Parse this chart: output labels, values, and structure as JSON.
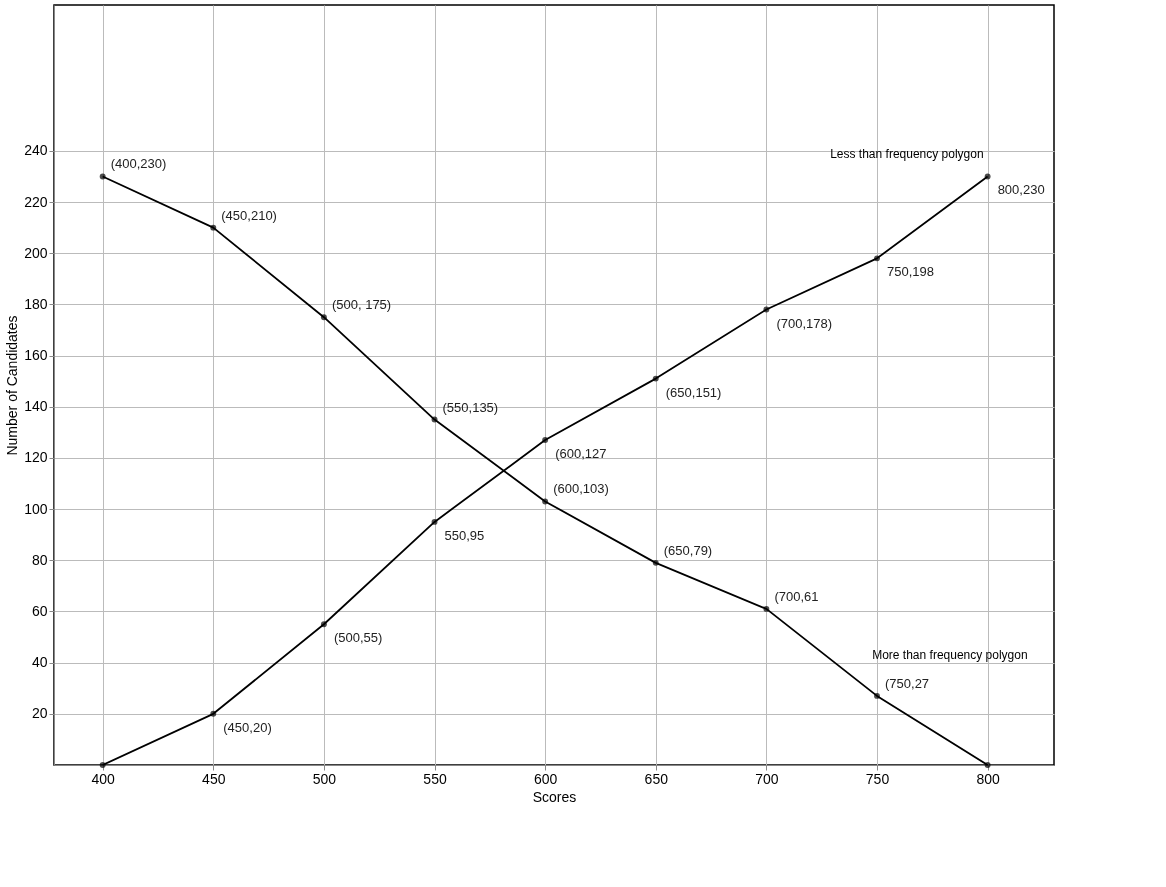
{
  "chart_data": {
    "type": "line",
    "xlabel": "Scores",
    "ylabel": "Number of Candidates",
    "xlim": [
      378,
      830
    ],
    "ylim": [
      0,
      297
    ],
    "xticks": [
      400,
      450,
      500,
      550,
      600,
      650,
      700,
      750,
      800
    ],
    "yticks": [
      20,
      40,
      60,
      80,
      100,
      120,
      140,
      160,
      180,
      200,
      220,
      240
    ],
    "grid": true,
    "marker": "circle",
    "line_style": "solid",
    "x": [
      400,
      450,
      500,
      550,
      600,
      650,
      700,
      750,
      800
    ],
    "series": [
      {
        "name": "Less than frequency polygon",
        "color": "#000000",
        "values": [
          0,
          20,
          55,
          95,
          127,
          151,
          178,
          198,
          230
        ]
      },
      {
        "name": "More than frequency polygon",
        "color": "#000000",
        "values": [
          230,
          210,
          175,
          135,
          103,
          79,
          61,
          27,
          0
        ]
      }
    ],
    "annotations": [
      {
        "text": "(400,230)",
        "x": 400,
        "y": 230
      },
      {
        "text": "(450,210)",
        "x": 450,
        "y": 210
      },
      {
        "text": "(500, 175)",
        "x": 500,
        "y": 175
      },
      {
        "text": "(550,135)",
        "x": 550,
        "y": 135
      },
      {
        "text": "(600,103)",
        "x": 600,
        "y": 103
      },
      {
        "text": "(650,79)",
        "x": 650,
        "y": 79
      },
      {
        "text": "(700,61",
        "x": 700,
        "y": 61
      },
      {
        "text": "(750,27",
        "x": 750,
        "y": 27
      },
      {
        "text": "(450,20)",
        "x": 450,
        "y": 20
      },
      {
        "text": "(500,55)",
        "x": 500,
        "y": 55
      },
      {
        "text": "550,95",
        "x": 550,
        "y": 95
      },
      {
        "text": "(600,127",
        "x": 600,
        "y": 127
      },
      {
        "text": "(650,151)",
        "x": 650,
        "y": 151
      },
      {
        "text": "(700,178)",
        "x": 700,
        "y": 178
      },
      {
        "text": "750,198",
        "x": 750,
        "y": 198
      },
      {
        "text": "800,230",
        "x": 800,
        "y": 230
      }
    ]
  }
}
